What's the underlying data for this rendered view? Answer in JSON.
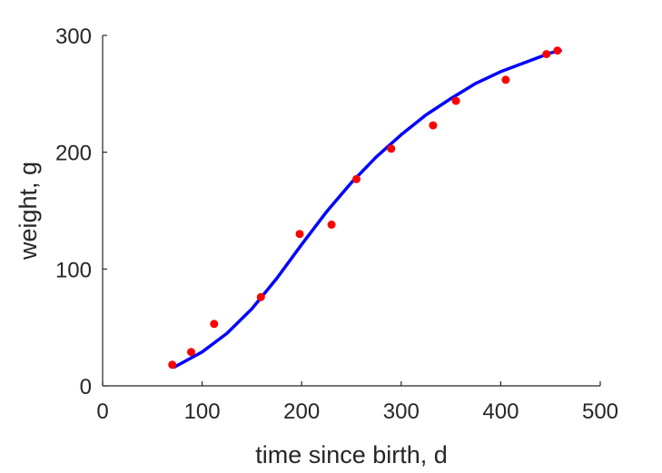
{
  "chart_data": {
    "type": "scatter",
    "title": "",
    "xlabel": "time since birth, d",
    "ylabel": "weight, g",
    "xlim": [
      0,
      500
    ],
    "ylim": [
      0,
      300
    ],
    "xticks": [
      0,
      100,
      200,
      300,
      400,
      500
    ],
    "yticks": [
      0,
      100,
      200,
      300
    ],
    "grid": false,
    "series": [
      {
        "kind": "points",
        "color": "#ff0000",
        "x": [
          70,
          89,
          112,
          159,
          198,
          230,
          255,
          290,
          332,
          355,
          405,
          446,
          457
        ],
        "y": [
          18,
          29,
          53,
          76,
          130,
          138,
          177,
          203,
          223,
          244,
          262,
          284,
          287
        ]
      },
      {
        "kind": "line",
        "color": "#0000ff",
        "x": [
          72,
          100,
          125,
          150,
          175,
          200,
          225,
          250,
          275,
          300,
          325,
          350,
          375,
          400,
          425,
          450,
          460
        ],
        "y": [
          16,
          29,
          45,
          66,
          92,
          121,
          149,
          174,
          196,
          215,
          232,
          246,
          259,
          269,
          277,
          285,
          287
        ]
      }
    ]
  }
}
